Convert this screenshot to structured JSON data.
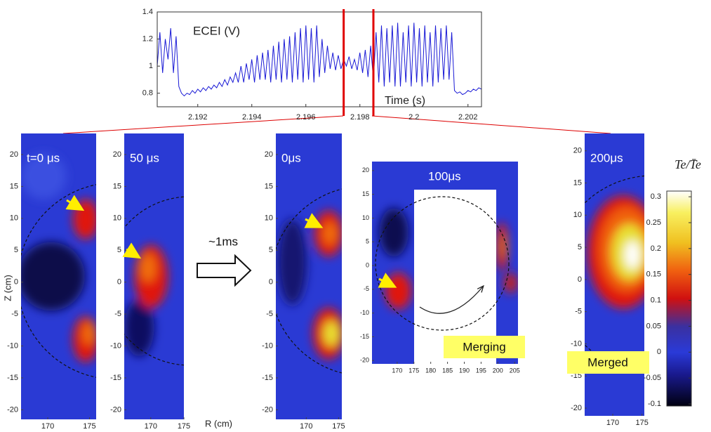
{
  "chart_data": {
    "type": "line",
    "annotation": "ECEI (V)",
    "x_label": "Time (s)",
    "x": [
      2.1905,
      2.1906,
      2.1907,
      2.1908,
      2.1909,
      2.191,
      2.1911,
      2.1912,
      2.1913,
      2.1914,
      2.1915,
      2.1916,
      2.1917,
      2.1918,
      2.1919,
      2.192,
      2.1921,
      2.1922,
      2.1923,
      2.1924,
      2.1925,
      2.1926,
      2.1927,
      2.1928,
      2.1929,
      2.193,
      2.1931,
      2.1932,
      2.1933,
      2.1934,
      2.1935,
      2.1936,
      2.1937,
      2.1938,
      2.1939,
      2.194,
      2.1941,
      2.1942,
      2.1943,
      2.1944,
      2.1945,
      2.1946,
      2.1947,
      2.1948,
      2.1949,
      2.195,
      2.1951,
      2.1952,
      2.1953,
      2.1954,
      2.1955,
      2.1956,
      2.1957,
      2.1958,
      2.1959,
      2.196,
      2.1961,
      2.1962,
      2.1963,
      2.1964,
      2.1965,
      2.1966,
      2.1967,
      2.1968,
      2.1969,
      2.197,
      2.1971,
      2.1972,
      2.1973,
      2.1974,
      2.1975,
      2.1976,
      2.1977,
      2.1978,
      2.1979,
      2.198,
      2.1981,
      2.1982,
      2.1983,
      2.1984,
      2.1985,
      2.1986,
      2.1987,
      2.1988,
      2.1989,
      2.199,
      2.1991,
      2.1992,
      2.1993,
      2.1994,
      2.1995,
      2.1996,
      2.1997,
      2.1998,
      2.1999,
      2.2,
      2.2001,
      2.2002,
      2.2003,
      2.2004,
      2.2005,
      2.2006,
      2.2007,
      2.2008,
      2.2009,
      2.201,
      2.2011,
      2.2012,
      2.2013,
      2.2014,
      2.2015,
      2.2016,
      2.2017,
      2.2018,
      2.2019,
      2.202,
      2.2021,
      2.2022,
      2.2023,
      2.2024,
      2.2025
    ],
    "series": [
      {
        "color": "#1a1ad6",
        "values": [
          1.0,
          1.25,
          0.95,
          1.2,
          1.05,
          1.28,
          0.95,
          1.22,
          0.85,
          0.8,
          0.78,
          0.8,
          0.79,
          0.82,
          0.8,
          0.83,
          0.81,
          0.84,
          0.82,
          0.85,
          0.83,
          0.86,
          0.84,
          0.88,
          0.85,
          0.9,
          0.86,
          0.92,
          0.88,
          0.95,
          0.88,
          1.0,
          0.88,
          1.02,
          0.9,
          1.05,
          0.88,
          1.08,
          0.9,
          1.1,
          0.9,
          1.12,
          0.88,
          1.15,
          0.9,
          1.18,
          0.88,
          1.2,
          0.9,
          1.22,
          0.88,
          1.25,
          0.9,
          1.28,
          0.88,
          1.3,
          0.9,
          1.28,
          0.88,
          1.3,
          0.92,
          1.2,
          0.95,
          1.15,
          0.98,
          1.1,
          0.97,
          1.08,
          0.98,
          1.05,
          1.0,
          1.07,
          0.98,
          1.05,
          0.97,
          1.1,
          0.95,
          1.12,
          0.92,
          1.15,
          0.9,
          1.25,
          0.88,
          1.3,
          0.85,
          1.28,
          0.88,
          1.3,
          0.85,
          1.32,
          0.85,
          1.25,
          0.88,
          1.3,
          0.85,
          1.32,
          0.88,
          1.28,
          0.85,
          1.3,
          0.88,
          1.25,
          0.85,
          1.3,
          0.88,
          1.28,
          0.9,
          1.3,
          0.9,
          1.25,
          0.82,
          0.8,
          0.81,
          0.79,
          0.8,
          0.82,
          0.81,
          0.83,
          0.82,
          0.84,
          0.83
        ]
      }
    ],
    "xlim": [
      2.1905,
      2.2025
    ],
    "xticks": [
      2.192,
      2.194,
      2.196,
      2.198,
      2.2,
      2.202
    ],
    "ylim": [
      0.7,
      1.4
    ],
    "yticks": [
      0.8,
      1,
      1.2,
      1.4
    ],
    "highlight_x": [
      2.1974,
      2.1985
    ],
    "highlight_color": "#e00000"
  },
  "panels": [
    {
      "label": "t=0 μs",
      "xlim": [
        166.8,
        175.8
      ],
      "ylim": [
        -21.5,
        23.3
      ],
      "xticks": [
        170,
        175
      ],
      "yticks": [
        20,
        15,
        10,
        5,
        0,
        -5,
        -10,
        -15,
        -20
      ]
    },
    {
      "label": "50 μs",
      "xlim": [
        166,
        175
      ],
      "ylim": [
        -21.5,
        23.3
      ],
      "xticks": [
        170,
        175
      ],
      "yticks": [
        20,
        15,
        10,
        5,
        0,
        -5,
        -10,
        -15,
        -20
      ]
    },
    {
      "label": "0μs",
      "xlim": [
        165.3,
        175.5
      ],
      "ylim": [
        -21.5,
        23.3
      ],
      "xticks": [
        170,
        175
      ],
      "yticks": [
        20,
        15,
        10,
        5,
        0,
        -5,
        -10,
        -15,
        -20
      ]
    },
    {
      "label": "100μs",
      "xlim": [
        162.5,
        206
      ],
      "ylim": [
        -20.7,
        21.9
      ],
      "xticks": [
        170,
        175,
        180,
        185,
        190,
        195,
        200,
        205
      ],
      "yticks": [
        20,
        15,
        10,
        5,
        0,
        -5,
        -10,
        -15,
        -20
      ]
    },
    {
      "label": "200μs",
      "xlim": [
        165.2,
        175.4
      ],
      "ylim": [
        -21.2,
        22.7
      ],
      "xticks": [
        170,
        175
      ],
      "yticks": [
        20,
        15,
        10,
        5,
        0,
        -5,
        -10,
        -15,
        -20
      ]
    }
  ],
  "z_label": "Z (cm)",
  "r_label": "R (cm)",
  "step_label": "~1ms",
  "merging_label": "Merging",
  "merged_label": "Merged",
  "colorbar": {
    "label": "Te/T̄e",
    "lim": [
      -0.104,
      0.311
    ],
    "ticks": [
      0.3,
      0.25,
      0.2,
      0.15,
      0.1,
      0.05,
      0,
      -0.05,
      -0.1
    ]
  }
}
